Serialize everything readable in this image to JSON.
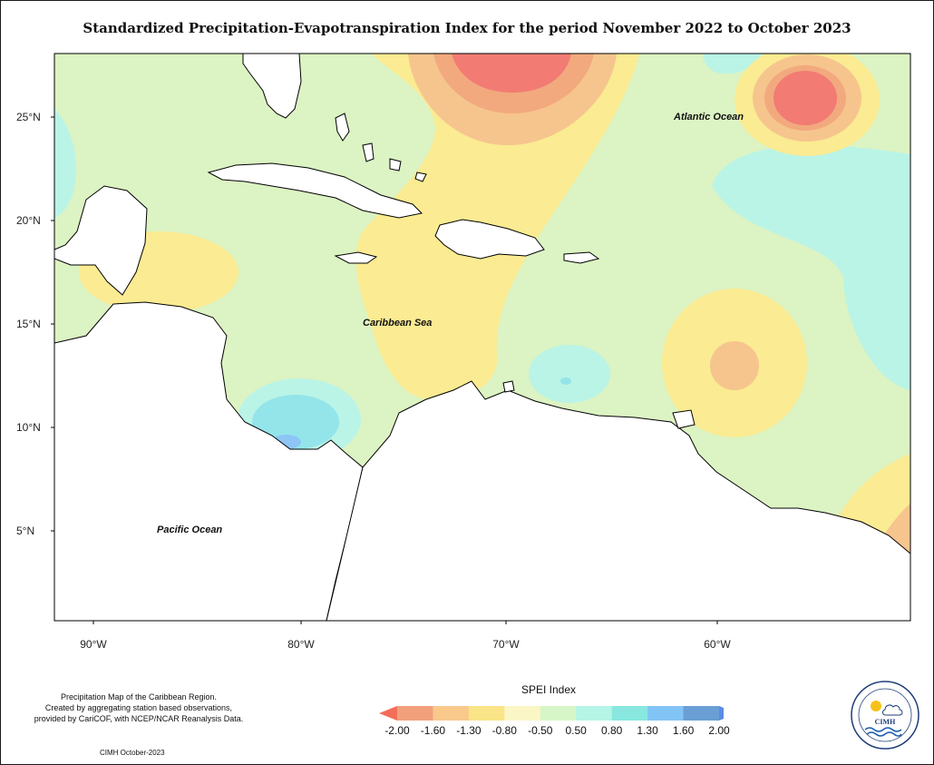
{
  "title": "Standardized Precipitation-Evapotranspiration Index for the period November 2022 to October 2023",
  "lat_labels": [
    "25°N",
    "20°N",
    "15°N",
    "10°N",
    "5°N"
  ],
  "lon_labels": [
    "90°W",
    "80°W",
    "70°W",
    "60°W"
  ],
  "ocean_labels": {
    "atlantic": "Atlantic Ocean",
    "caribbean": "Caribbean Sea",
    "pacific": "Pacific Ocean"
  },
  "footnote": {
    "line1": "Precipitation Map of the Caribbean Region.",
    "line2": "Created by aggregating station based observations,",
    "line3": "provided by CariCOF, with NCEP/NCAR Reanalysis Data."
  },
  "credit": "CIMH October-2023",
  "legend": {
    "title": "SPEI Index",
    "ticks": [
      "-2.00",
      "-1.60",
      "-1.30",
      "-0.80",
      "-0.50",
      "0.50",
      "0.80",
      "1.30",
      "1.60",
      "2.00"
    ],
    "colors": [
      "#f26e5a",
      "#f2a07c",
      "#f9c98c",
      "#fae488",
      "#fbf6c6",
      "#d6f6c8",
      "#b4f5e6",
      "#88e8e0",
      "#82c4f6",
      "#6a9ed4",
      "#5a8be8"
    ]
  },
  "logo": {
    "text": "CIMH"
  },
  "map_colors": {
    "near_normal": "#dcf3c3",
    "moderately_dry": "#fbeb92",
    "dry": "#f6c58e",
    "very_dry": "#f2a97e",
    "extremely_dry": "#f27b74",
    "moderately_wet": "#baf4e6",
    "wet": "#93e5ea",
    "very_wet": "#8dc6f5"
  }
}
